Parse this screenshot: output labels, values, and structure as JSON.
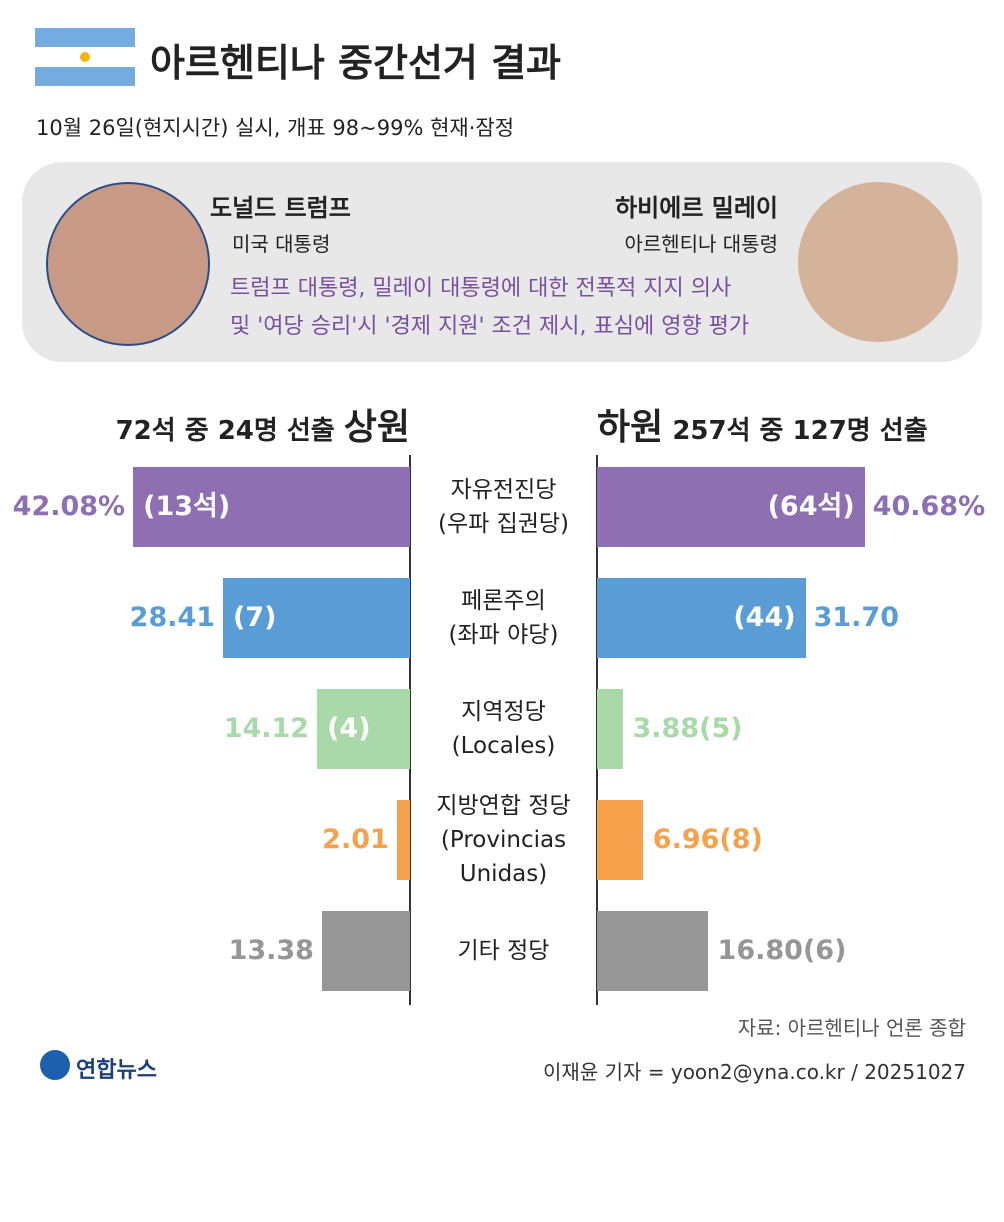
{
  "header": {
    "title": "아르헨티나 중간선거 결과",
    "subtitle": "10월 26일(현지시간) 실시, 개표 98~99% 현재·잠정"
  },
  "people": [
    {
      "name": "도널드 트럼프",
      "role": "미국 대통령"
    },
    {
      "name": "하비에르 밀레이",
      "role": "아르헨티나 대통령"
    }
  ],
  "note": [
    "트럼프 대통령, 밀레이 대통령에 대한 전폭적 지지 의사",
    "및 '여당 승리'시 '경제 지원' 조건 제시, 표심에 영향 평가"
  ],
  "chart_data": {
    "type": "butterfly",
    "categories": [
      "자유전진당\n(우파 집권당)",
      "페론주의\n(좌파 야당)",
      "지역정당\n(Locales)",
      "지방연합 정당\n(Provincias\nUnidas)",
      "기타 정당"
    ],
    "colors": [
      "#8e6fb1",
      "#5a9dd6",
      "#a9d9a9",
      "#f6a24c",
      "#969696"
    ],
    "series": [
      {
        "name": "상원",
        "description": "72석 중 24명 선출",
        "values": [
          42.08,
          28.41,
          14.12,
          2.01,
          13.38
        ],
        "value_labels": [
          "42.08%",
          "28.41",
          "14.12",
          "2.01",
          "13.38"
        ],
        "seat_labels": [
          "(13석)",
          "(7)",
          "(4)",
          null,
          null
        ]
      },
      {
        "name": "하원",
        "description": "257석 중 127명 선출",
        "values": [
          40.68,
          31.7,
          3.88,
          6.96,
          16.8
        ],
        "value_labels": [
          "40.68%",
          "31.70",
          "3.88",
          "6.96",
          "16.80"
        ],
        "seat_labels": [
          "(64석)",
          "(44)",
          "(5)",
          "(8)",
          "(6)"
        ]
      }
    ]
  },
  "footer": {
    "source": "자료: 아르헨티나 언론 종합",
    "credit": "이재윤 기자 = yoon2@yna.co.kr / 20251027",
    "logo": "연합뉴스"
  }
}
